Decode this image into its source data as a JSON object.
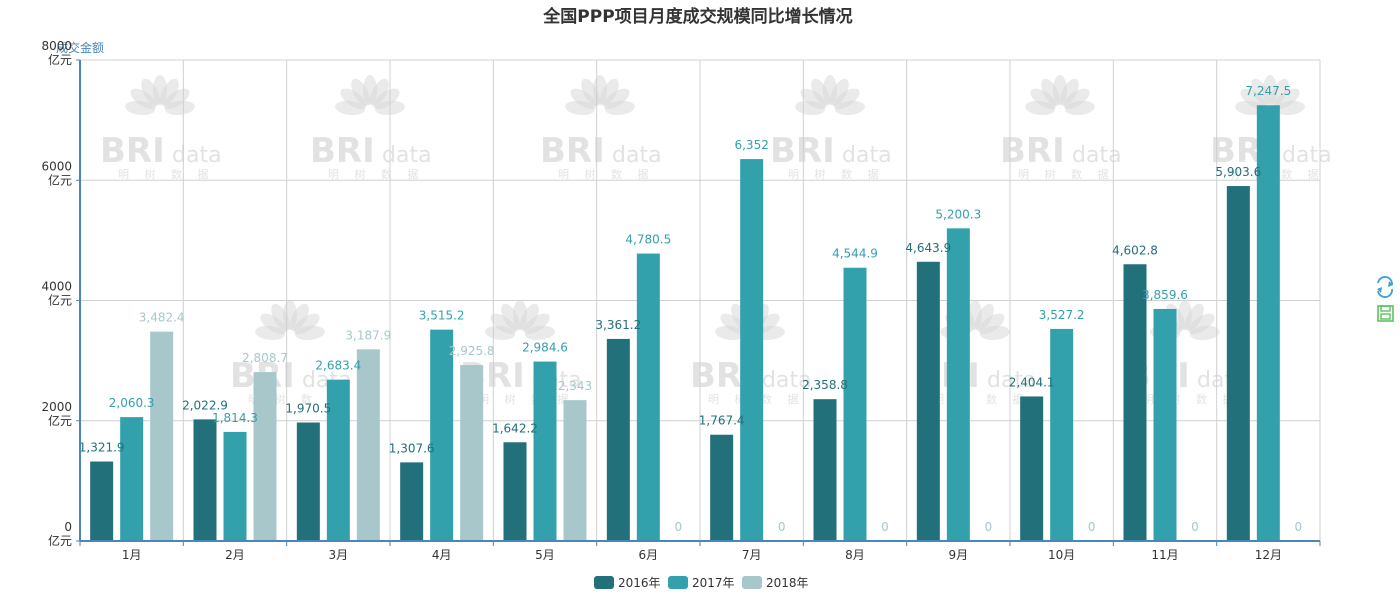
{
  "watermark": {
    "brand": "BRI",
    "suffix": "data",
    "subtext": "明 树 数 据"
  },
  "toolbox": {
    "refresh_icon": "refresh-icon",
    "save_icon": "save-image-icon"
  },
  "colors": {
    "axis": "#4a86b8",
    "grid": "#d0d0d0",
    "restore": "#3aa0d8",
    "save": "#5cc35c"
  },
  "chart_data": {
    "type": "bar",
    "title": "全国PPP项目月度成交规模同比增长情况",
    "ylabel": "成交金额",
    "unit": "亿元",
    "ylim": [
      0,
      8000
    ],
    "yticks": [
      0,
      2000,
      4000,
      6000,
      8000
    ],
    "grid": true,
    "legend_position": "bottom",
    "categories": [
      "1月",
      "2月",
      "3月",
      "4月",
      "5月",
      "6月",
      "7月",
      "8月",
      "9月",
      "10月",
      "11月",
      "12月"
    ],
    "series": [
      {
        "name": "2016年",
        "color": "#21707a",
        "values": [
          1321.9,
          2022.9,
          1970.5,
          1307.6,
          1642.2,
          3361.2,
          1767.4,
          2358.8,
          4643.9,
          2404.1,
          4602.8,
          5903.6
        ],
        "labels": [
          "1,321.9",
          "2,022.9",
          "1,970.5",
          "1,307.6",
          "1,642.2",
          "3,361.2",
          "1,767.4",
          "2,358.8",
          "4,643.9",
          "2,404.1",
          "4,602.8",
          "5,903.6"
        ]
      },
      {
        "name": "2017年",
        "color": "#33a1ac",
        "values": [
          2060.3,
          1814.3,
          2683.4,
          3515.2,
          2984.6,
          4780.5,
          6352,
          4544.9,
          5200.3,
          3527.2,
          3859.6,
          7247.5
        ],
        "labels": [
          "2,060.3",
          "1,814.3",
          "2,683.4",
          "3,515.2",
          "2,984.6",
          "4,780.5",
          "6,352",
          "4,544.9",
          "5,200.3",
          "3,527.2",
          "3,859.6",
          "7,247.5"
        ]
      },
      {
        "name": "2018年",
        "color": "#a8c7cb",
        "values": [
          3482.4,
          2808.7,
          3187.9,
          2925.8,
          2343,
          0,
          0,
          0,
          0,
          0,
          0,
          0
        ],
        "labels": [
          "3,482.4",
          "2,808.7",
          "3,187.9",
          "2,925.8",
          "2,343",
          "0",
          "0",
          "0",
          "0",
          "0",
          "0",
          "0"
        ]
      }
    ]
  }
}
